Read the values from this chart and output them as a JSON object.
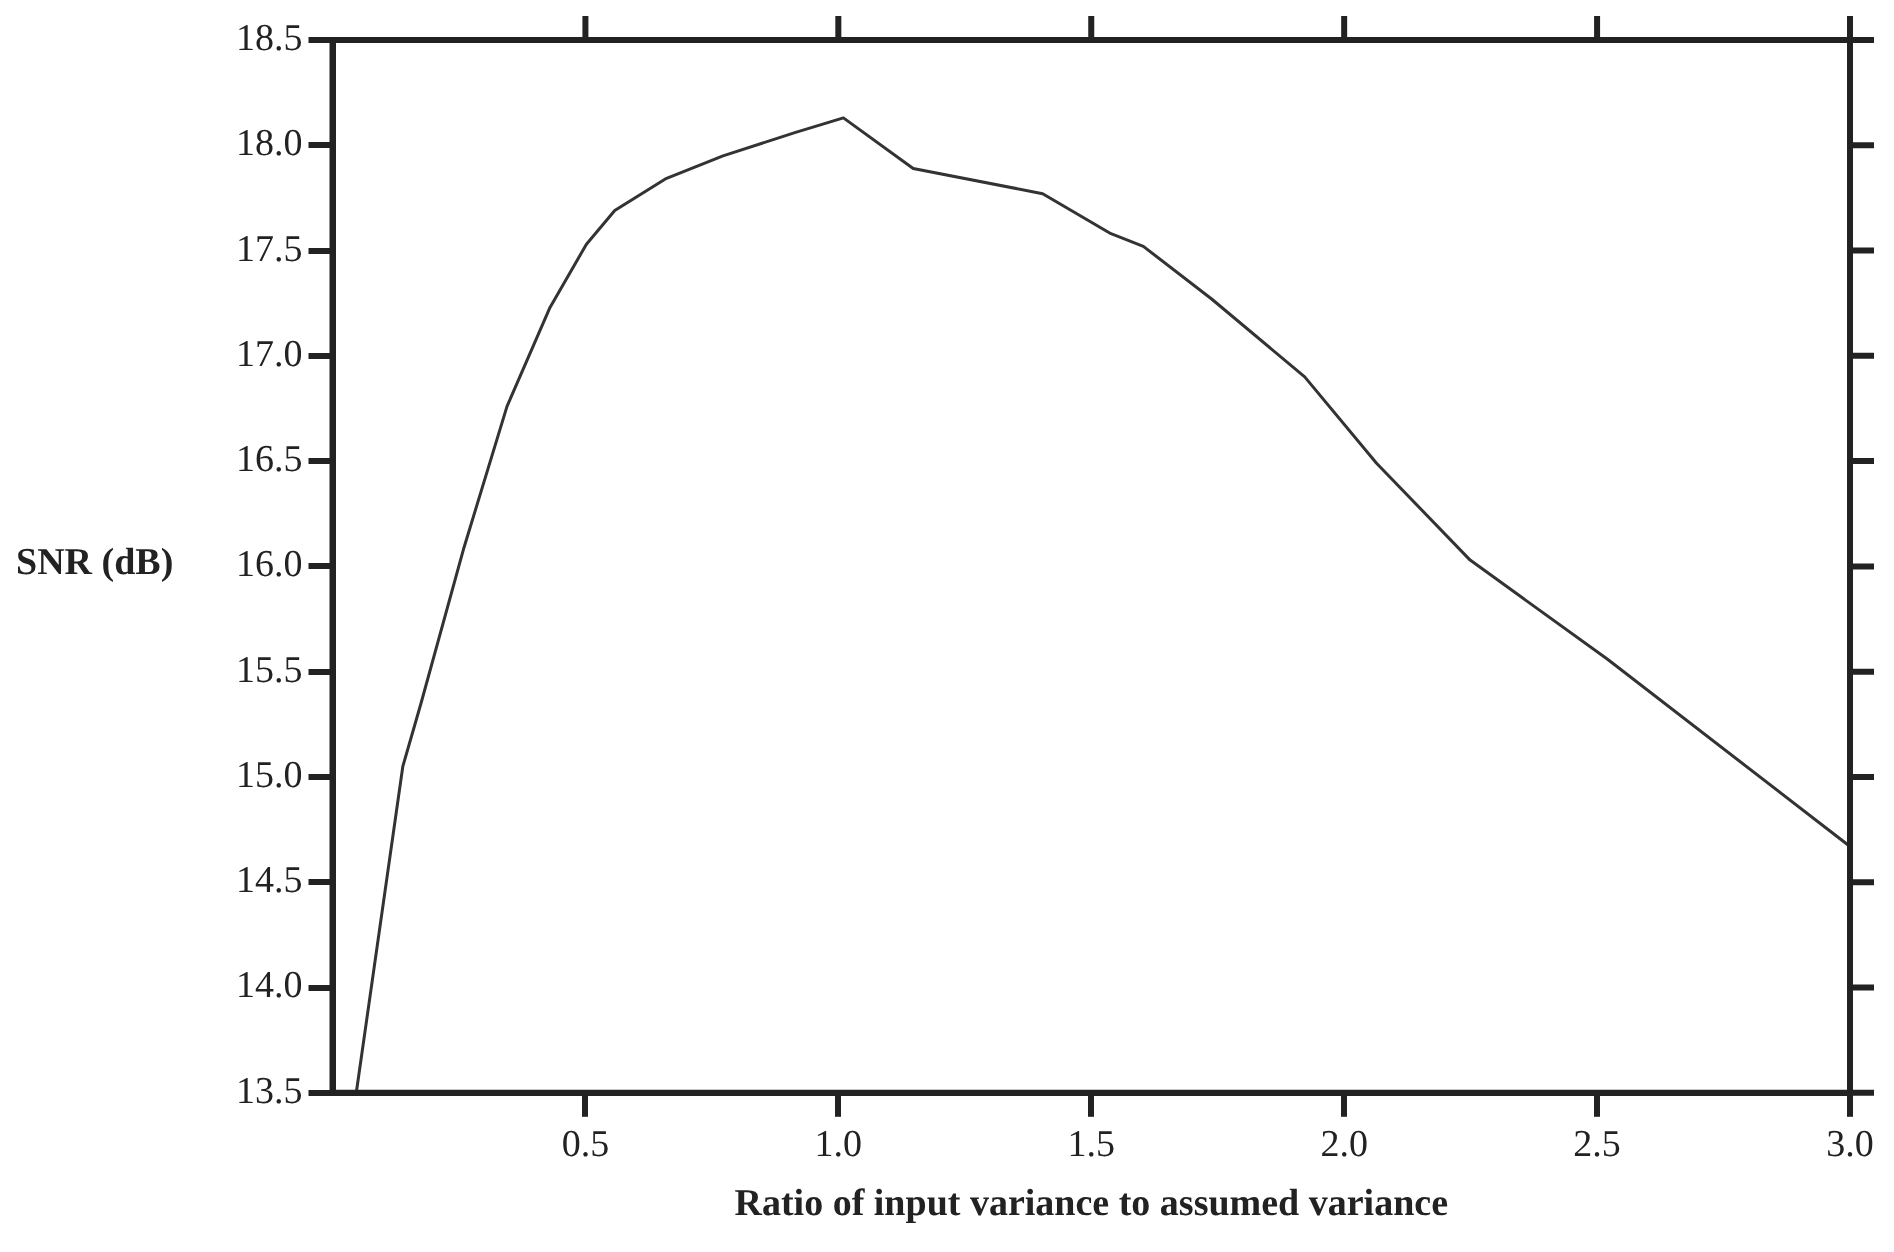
{
  "chart_data": {
    "type": "line",
    "xlabel": "Ratio of input variance to assumed variance",
    "ylabel": "SNR (dB)",
    "xlim": [
      0,
      3
    ],
    "ylim": [
      13.5,
      18.5
    ],
    "xticks": [
      {
        "value": 0.5,
        "label": "0.5"
      },
      {
        "value": 1,
        "label": "1.0"
      },
      {
        "value": 1.5,
        "label": "1.5"
      },
      {
        "value": 2,
        "label": "2.0"
      },
      {
        "value": 2.5,
        "label": "2.5"
      },
      {
        "value": 3,
        "label": "3.0"
      }
    ],
    "yticks": [
      {
        "value": 13.5,
        "label": "13.5"
      },
      {
        "value": 14,
        "label": "14.0"
      },
      {
        "value": 14.5,
        "label": "14.5"
      },
      {
        "value": 15,
        "label": "15.0"
      },
      {
        "value": 15.5,
        "label": "15.5"
      },
      {
        "value": 16,
        "label": "16.0"
      },
      {
        "value": 16.5,
        "label": "16.5"
      },
      {
        "value": 17,
        "label": "17.0"
      },
      {
        "value": 17.5,
        "label": "17.5"
      },
      {
        "value": 18,
        "label": "18.0"
      },
      {
        "value": 18.5,
        "label": "18.5"
      }
    ],
    "marker": "none",
    "line_style": "solid",
    "series": [
      {
        "color": "#333333",
        "x": [
          0.047,
          0.139,
          0.175,
          0.26,
          0.345,
          0.43,
          0.502,
          0.558,
          0.658,
          0.772,
          0.914,
          1.01,
          1.148,
          1.404,
          1.539,
          1.603,
          1.738,
          1.922,
          2.064,
          2.249,
          2.52,
          3.0
        ],
        "values": [
          13.5,
          15.05,
          15.35,
          16.09,
          16.76,
          17.23,
          17.53,
          17.69,
          17.84,
          17.95,
          18.06,
          18.13,
          17.89,
          17.77,
          17.58,
          17.52,
          17.27,
          16.9,
          16.49,
          16.03,
          15.56,
          14.67
        ]
      }
    ]
  }
}
